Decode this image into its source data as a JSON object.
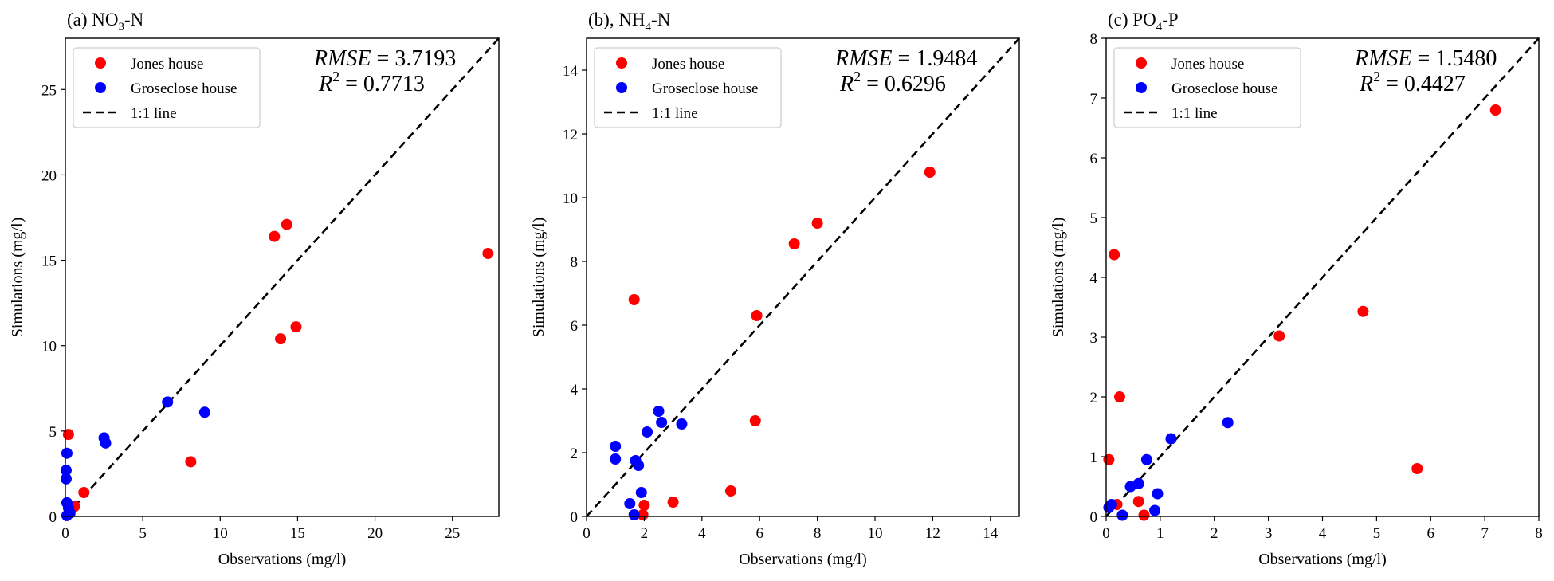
{
  "chart_data": [
    {
      "type": "scatter",
      "title_prefix": "(a) NO",
      "title_sub": "3",
      "title_suffix": "-N",
      "xlabel": "Observations (mg/l)",
      "ylabel": "Simulations (mg/l)",
      "xlim": [
        0,
        28
      ],
      "ylim": [
        0,
        28
      ],
      "xticks": [
        0,
        5,
        10,
        15,
        20,
        25
      ],
      "yticks": [
        0,
        5,
        10,
        15,
        20,
        25
      ],
      "stats": {
        "rmse_label": "RMSE",
        "rmse_value": "3.7193",
        "r2_label": "R",
        "r2_sup": "2",
        "r2_value": "0.7713"
      },
      "legend": [
        "Jones house",
        "Groseclose house",
        "1:1 line"
      ],
      "legend_position": "upper-left",
      "series": [
        {
          "name": "Jones house",
          "color": "#ff0000",
          "points": [
            [
              0.2,
              4.8
            ],
            [
              1.2,
              1.4
            ],
            [
              0.6,
              0.6
            ],
            [
              8.1,
              3.2
            ],
            [
              13.5,
              16.4
            ],
            [
              14.3,
              17.1
            ],
            [
              13.9,
              10.4
            ],
            [
              14.9,
              11.1
            ],
            [
              27.3,
              15.4
            ]
          ]
        },
        {
          "name": "Groseclose house",
          "color": "#0000ff",
          "points": [
            [
              0.1,
              3.7
            ],
            [
              0.05,
              2.7
            ],
            [
              0.05,
              2.2
            ],
            [
              0.1,
              0.8
            ],
            [
              0.2,
              0.5
            ],
            [
              0.3,
              0.2
            ],
            [
              0.1,
              0.05
            ],
            [
              2.5,
              4.6
            ],
            [
              2.6,
              4.3
            ],
            [
              6.6,
              6.7
            ],
            [
              9.0,
              6.1
            ]
          ]
        }
      ]
    },
    {
      "type": "scatter",
      "title_prefix": "(b), NH",
      "title_sub": "4",
      "title_suffix": "-N",
      "xlabel": "Observations (mg/l)",
      "ylabel": "Simulations (mg/l)",
      "xlim": [
        0,
        15
      ],
      "ylim": [
        0,
        15
      ],
      "xticks": [
        0,
        2,
        4,
        6,
        8,
        10,
        12,
        14
      ],
      "yticks": [
        0,
        2,
        4,
        6,
        8,
        10,
        12,
        14
      ],
      "stats": {
        "rmse_label": "RMSE",
        "rmse_value": "1.9484",
        "r2_label": "R",
        "r2_sup": "2",
        "r2_value": "0.6296"
      },
      "legend": [
        "Jones house",
        "Groseclose house",
        "1:1 line"
      ],
      "legend_position": "upper-left",
      "series": [
        {
          "name": "Jones house",
          "color": "#ff0000",
          "points": [
            [
              1.65,
              6.8
            ],
            [
              1.95,
              0.05
            ],
            [
              2.0,
              0.35
            ],
            [
              3.0,
              0.45
            ],
            [
              5.0,
              0.8
            ],
            [
              5.85,
              3.0
            ],
            [
              5.9,
              6.3
            ],
            [
              7.2,
              8.55
            ],
            [
              8.0,
              9.2
            ],
            [
              11.9,
              10.8
            ]
          ]
        },
        {
          "name": "Groseclose house",
          "color": "#0000ff",
          "points": [
            [
              1.0,
              2.2
            ],
            [
              1.0,
              1.8
            ],
            [
              1.5,
              0.4
            ],
            [
              1.65,
              0.05
            ],
            [
              1.7,
              1.75
            ],
            [
              1.8,
              1.6
            ],
            [
              1.9,
              0.75
            ],
            [
              2.1,
              2.65
            ],
            [
              2.5,
              3.3
            ],
            [
              2.6,
              2.95
            ],
            [
              3.3,
              2.9
            ]
          ]
        }
      ]
    },
    {
      "type": "scatter",
      "title_prefix": "(c) PO",
      "title_sub": "4",
      "title_suffix": "-P",
      "xlabel": "Observations (mg/l)",
      "ylabel": "Simulations (mg/l)",
      "xlim": [
        0,
        8
      ],
      "ylim": [
        0,
        8
      ],
      "xticks": [
        0,
        1,
        2,
        3,
        4,
        5,
        6,
        7,
        8
      ],
      "yticks": [
        0,
        1,
        2,
        3,
        4,
        5,
        6,
        7,
        8
      ],
      "stats": {
        "rmse_label": "RMSE",
        "rmse_value": "1.5480",
        "r2_label": "R",
        "r2_sup": "2",
        "r2_value": "0.4427"
      },
      "legend": [
        "Jones house",
        "Groseclose house",
        "1:1 line"
      ],
      "legend_position": "upper-left",
      "series": [
        {
          "name": "Jones house",
          "color": "#ff0000",
          "points": [
            [
              0.05,
              0.95
            ],
            [
              0.15,
              4.38
            ],
            [
              0.2,
              0.2
            ],
            [
              0.25,
              2.0
            ],
            [
              0.6,
              0.25
            ],
            [
              0.7,
              0.02
            ],
            [
              3.2,
              3.02
            ],
            [
              4.75,
              3.43
            ],
            [
              5.75,
              0.8
            ],
            [
              7.2,
              6.8
            ]
          ]
        },
        {
          "name": "Groseclose house",
          "color": "#0000ff",
          "points": [
            [
              0.05,
              0.15
            ],
            [
              0.1,
              0.2
            ],
            [
              0.3,
              0.02
            ],
            [
              0.45,
              0.5
            ],
            [
              0.6,
              0.55
            ],
            [
              0.75,
              0.95
            ],
            [
              0.9,
              0.1
            ],
            [
              0.95,
              0.38
            ],
            [
              1.2,
              1.3
            ],
            [
              2.25,
              1.57
            ]
          ]
        }
      ]
    }
  ]
}
